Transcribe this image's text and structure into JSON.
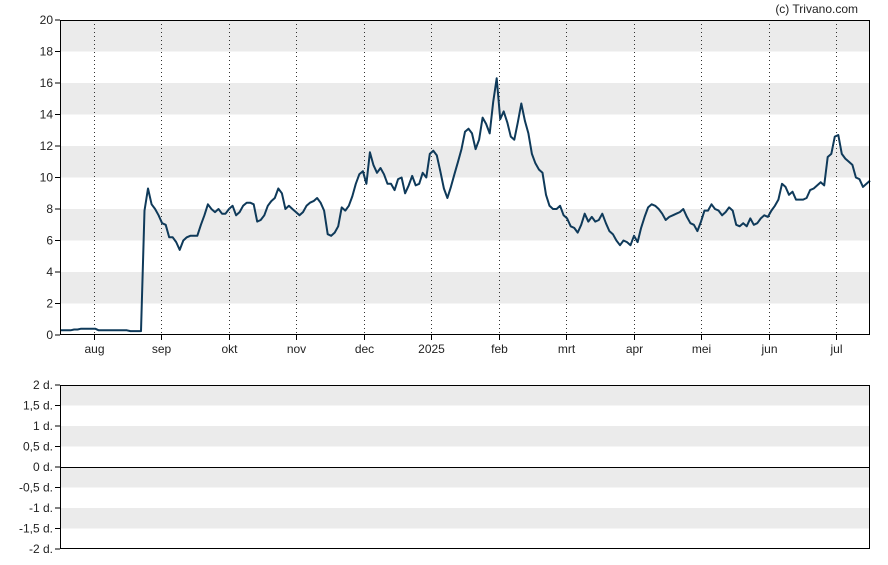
{
  "credit": "(c) Trivano.com",
  "colors": {
    "line": "#0f3a5a",
    "band": "#ebebeb",
    "frame": "#000000",
    "zero_line": "#000000"
  },
  "chart_data": [
    {
      "type": "line",
      "x_ticks": [
        "aug",
        "sep",
        "okt",
        "nov",
        "dec",
        "2025",
        "feb",
        "mrt",
        "apr",
        "mei",
        "jun",
        "jul"
      ],
      "y_ticks": [
        "0",
        "2",
        "4",
        "6",
        "8",
        "10",
        "12",
        "14",
        "16",
        "18",
        "20"
      ],
      "ylim": [
        0,
        20
      ],
      "grid": "horizontal alternating bands, dotted vertical month lines",
      "series": [
        {
          "values": [
            0.3,
            0.3,
            0.3,
            0.3,
            0.35,
            0.35,
            0.4,
            0.4,
            0.4,
            0.4,
            0.4,
            0.3,
            0.3,
            0.3,
            0.3,
            0.3,
            0.3,
            0.3,
            0.3,
            0.3,
            0.25,
            0.25,
            0.25,
            0.25,
            7.9,
            9.3,
            8.3,
            8.0,
            7.6,
            7.1,
            7.0,
            6.2,
            6.2,
            5.9,
            5.4,
            6.0,
            6.2,
            6.3,
            6.3,
            6.3,
            7.0,
            7.6,
            8.3,
            8.0,
            7.8,
            8.0,
            7.7,
            7.7,
            8.0,
            8.2,
            7.6,
            7.8,
            8.2,
            8.4,
            8.4,
            8.3,
            7.2,
            7.3,
            7.6,
            8.2,
            8.5,
            8.7,
            9.3,
            9.0,
            8.0,
            8.2,
            8.0,
            7.8,
            7.6,
            7.8,
            8.2,
            8.4,
            8.5,
            8.7,
            8.4,
            7.9,
            6.4,
            6.3,
            6.5,
            6.9,
            8.1,
            7.9,
            8.2,
            8.8,
            9.6,
            10.2,
            10.4,
            9.6,
            11.6,
            10.8,
            10.3,
            10.6,
            10.2,
            9.6,
            9.6,
            9.2,
            9.9,
            10.0,
            9.0,
            9.5,
            10.1,
            9.5,
            9.6,
            10.3,
            10.0,
            11.5,
            11.7,
            11.4,
            10.4,
            9.3,
            8.7,
            9.4,
            10.2,
            11.0,
            11.8,
            12.9,
            13.1,
            12.8,
            11.8,
            12.4,
            13.8,
            13.4,
            12.8,
            14.8,
            16.3,
            13.7,
            14.2,
            13.5,
            12.6,
            12.4,
            13.5,
            14.7,
            13.6,
            12.8,
            11.5,
            10.9,
            10.5,
            10.3,
            8.9,
            8.2,
            8.0,
            8.0,
            8.2,
            7.6,
            7.4,
            6.9,
            6.8,
            6.5,
            7.0,
            7.7,
            7.2,
            7.5,
            7.2,
            7.3,
            7.7,
            7.1,
            6.6,
            6.4,
            6.0,
            5.7,
            6.0,
            5.9,
            5.7,
            6.3,
            5.9,
            6.8,
            7.5,
            8.1,
            8.3,
            8.2,
            8.0,
            7.7,
            7.3,
            7.5,
            7.6,
            7.7,
            7.8,
            8.0,
            7.5,
            7.1,
            7.0,
            6.6,
            7.2,
            7.9,
            7.9,
            8.3,
            8.0,
            7.9,
            7.6,
            7.8,
            8.1,
            7.9,
            7.0,
            6.9,
            7.1,
            6.9,
            7.4,
            7.0,
            7.1,
            7.4,
            7.6,
            7.5,
            7.9,
            8.2,
            8.6,
            9.6,
            9.4,
            8.9,
            9.1,
            8.6,
            8.6,
            8.6,
            8.7,
            9.2,
            9.3,
            9.5,
            9.7,
            9.5,
            11.3,
            11.5,
            12.6,
            12.7,
            11.5,
            11.2,
            11.0,
            10.8,
            10.0,
            9.9,
            9.4,
            9.6,
            9.8
          ]
        }
      ]
    },
    {
      "type": "line",
      "y_ticks": [
        "2 d.",
        "1,5 d.",
        "1 d.",
        "0,5 d.",
        "0 d.",
        "-0,5 d.",
        "-1 d.",
        "-1,5 d.",
        "-2 d."
      ],
      "ylim": [
        -2,
        2
      ],
      "grid": "horizontal alternating bands",
      "series": []
    }
  ]
}
